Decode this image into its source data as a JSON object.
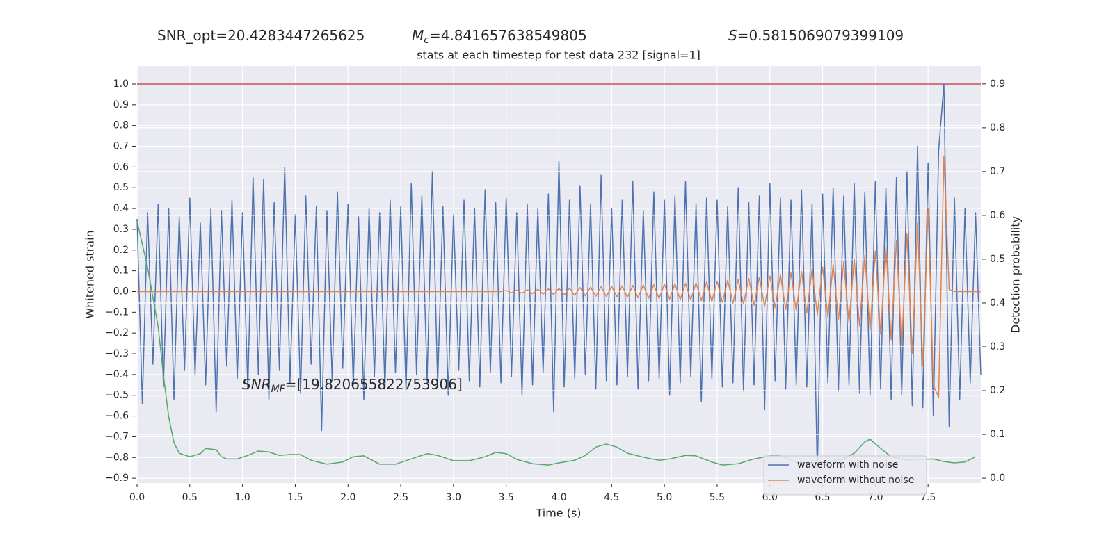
{
  "chart_data": {
    "type": "line",
    "title": "stats at each timestep for test data 232 [signal=1]",
    "annotations": [
      {
        "parts": [
          {
            "text": "SNR_opt=20.4283447265625"
          }
        ]
      },
      {
        "parts": [
          {
            "text": "M",
            "style": "italic"
          },
          {
            "text": "c",
            "style": "italic-sub"
          },
          {
            "text": "=4.841657638549805"
          }
        ]
      },
      {
        "parts": [
          {
            "text": "S",
            "style": "italic"
          },
          {
            "text": "=0.5815069079399109"
          }
        ]
      },
      {
        "parts": [
          {
            "text": "SNR",
            "style": "italic"
          },
          {
            "text": "MF",
            "style": "italic-sub"
          },
          {
            "text": "=[19.820655822753906]"
          }
        ]
      }
    ],
    "x_label": "Time (s)",
    "y_label": "Whitened strain",
    "y2_label": "Detection probability",
    "xlim": [
      0,
      8
    ],
    "ylim": [
      -0.923,
      1.087
    ],
    "y2lim": [
      -0.011,
      0.941
    ],
    "xticks": [
      {
        "value": 0,
        "label": "0.0"
      },
      {
        "value": 0.5,
        "label": "0.5"
      },
      {
        "value": 1,
        "label": "1.0"
      },
      {
        "value": 1.5,
        "label": "1.5"
      },
      {
        "value": 2,
        "label": "2.0"
      },
      {
        "value": 2.5,
        "label": "2.5"
      },
      {
        "value": 3,
        "label": "3.0"
      },
      {
        "value": 3.5,
        "label": "3.5"
      },
      {
        "value": 4,
        "label": "4.0"
      },
      {
        "value": 4.5,
        "label": "4.5"
      },
      {
        "value": 5,
        "label": "5.0"
      },
      {
        "value": 5.5,
        "label": "5.5"
      },
      {
        "value": 6,
        "label": "6.0"
      },
      {
        "value": 6.5,
        "label": "6.5"
      },
      {
        "value": 7,
        "label": "7.0"
      },
      {
        "value": 7.5,
        "label": "7.5"
      }
    ],
    "yticks": [
      {
        "value": -0.9,
        "label": "−0.9"
      },
      {
        "value": -0.8,
        "label": "−0.8"
      },
      {
        "value": -0.7,
        "label": "−0.7"
      },
      {
        "value": -0.6,
        "label": "−0.6"
      },
      {
        "value": -0.5,
        "label": "−0.5"
      },
      {
        "value": -0.4,
        "label": "−0.4"
      },
      {
        "value": -0.3,
        "label": "−0.3"
      },
      {
        "value": -0.2,
        "label": "−0.2"
      },
      {
        "value": -0.1,
        "label": "−0.1"
      },
      {
        "value": 0,
        "label": "0.0"
      },
      {
        "value": 0.1,
        "label": "0.1"
      },
      {
        "value": 0.2,
        "label": "0.2"
      },
      {
        "value": 0.3,
        "label": "0.3"
      },
      {
        "value": 0.4,
        "label": "0.4"
      },
      {
        "value": 0.5,
        "label": "0.5"
      },
      {
        "value": 0.6,
        "label": "0.6"
      },
      {
        "value": 0.7,
        "label": "0.7"
      },
      {
        "value": 0.8,
        "label": "0.8"
      },
      {
        "value": 0.9,
        "label": "0.9"
      },
      {
        "value": 1,
        "label": "1.0"
      }
    ],
    "y2ticks": [
      {
        "value": 0,
        "label": "0.0"
      },
      {
        "value": 0.1,
        "label": "0.1"
      },
      {
        "value": 0.2,
        "label": "0.2"
      },
      {
        "value": 0.3,
        "label": "0.3"
      },
      {
        "value": 0.4,
        "label": "0.4"
      },
      {
        "value": 0.5,
        "label": "0.5"
      },
      {
        "value": 0.6,
        "label": "0.6"
      },
      {
        "value": 0.7,
        "label": "0.7"
      },
      {
        "value": 0.8,
        "label": "0.8"
      },
      {
        "value": 0.9,
        "label": "0.9"
      }
    ],
    "grid": true,
    "legend": "lower right",
    "hline": {
      "value": 1.0,
      "color": "#c44e52"
    },
    "x": [
      0,
      0.05,
      0.1,
      0.15,
      0.2,
      0.25,
      0.3,
      0.35,
      0.4,
      0.45,
      0.5,
      0.55,
      0.6,
      0.65,
      0.7,
      0.75,
      0.8,
      0.85,
      0.9,
      0.95,
      1,
      1.05,
      1.1,
      1.15,
      1.2,
      1.25,
      1.3,
      1.35,
      1.4,
      1.45,
      1.5,
      1.55,
      1.6,
      1.65,
      1.7,
      1.75,
      1.8,
      1.85,
      1.9,
      1.95,
      2,
      2.05,
      2.1,
      2.15,
      2.2,
      2.25,
      2.3,
      2.35,
      2.4,
      2.45,
      2.5,
      2.55,
      2.6,
      2.65,
      2.7,
      2.75,
      2.8,
      2.85,
      2.9,
      2.95,
      3,
      3.05,
      3.1,
      3.15,
      3.2,
      3.25,
      3.3,
      3.35,
      3.4,
      3.45,
      3.5,
      3.55,
      3.6,
      3.65,
      3.7,
      3.75,
      3.8,
      3.85,
      3.9,
      3.95,
      4,
      4.05,
      4.1,
      4.15,
      4.2,
      4.25,
      4.3,
      4.35,
      4.4,
      4.45,
      4.5,
      4.55,
      4.6,
      4.65,
      4.7,
      4.75,
      4.8,
      4.85,
      4.9,
      4.95,
      5,
      5.05,
      5.1,
      5.15,
      5.2,
      5.25,
      5.3,
      5.35,
      5.4,
      5.45,
      5.5,
      5.55,
      5.6,
      5.65,
      5.7,
      5.75,
      5.8,
      5.85,
      5.9,
      5.95,
      6,
      6.05,
      6.1,
      6.15,
      6.2,
      6.25,
      6.3,
      6.35,
      6.4,
      6.45,
      6.5,
      6.55,
      6.6,
      6.65,
      6.7,
      6.75,
      6.8,
      6.85,
      6.9,
      6.95,
      7,
      7.05,
      7.1,
      7.15,
      7.2,
      7.25,
      7.3,
      7.35,
      7.4,
      7.45,
      7.5,
      7.55,
      7.6,
      7.65,
      7.7,
      7.75,
      7.8,
      7.85,
      7.9,
      7.95,
      8
    ],
    "series": [
      {
        "name": "waveform with noise",
        "color": "#4c72b0",
        "values": [
          0.35,
          -0.54,
          0.38,
          -0.35,
          0.42,
          -0.46,
          0.4,
          -0.52,
          0.36,
          -0.38,
          0.45,
          -0.4,
          0.33,
          -0.45,
          0.4,
          -0.58,
          0.39,
          -0.36,
          0.44,
          -0.42,
          0.38,
          -0.47,
          0.55,
          -0.4,
          0.54,
          -0.52,
          0.43,
          -0.38,
          0.6,
          -0.44,
          0.37,
          -0.49,
          0.46,
          -0.35,
          0.41,
          -0.67,
          0.39,
          -0.43,
          0.48,
          -0.37,
          0.42,
          -0.45,
          0.36,
          -0.52,
          0.4,
          -0.41,
          0.38,
          -0.47,
          0.44,
          -0.39,
          0.41,
          -0.48,
          0.52,
          -0.4,
          0.46,
          -0.43,
          0.58,
          -0.45,
          0.41,
          -0.5,
          0.37,
          -0.38,
          0.44,
          -0.43,
          0.4,
          -0.46,
          0.49,
          -0.39,
          0.43,
          -0.44,
          0.45,
          -0.41,
          0.38,
          -0.5,
          0.42,
          -0.45,
          0.4,
          -0.39,
          0.47,
          -0.58,
          0.63,
          -0.46,
          0.44,
          -0.42,
          0.51,
          -0.4,
          0.42,
          -0.47,
          0.56,
          -0.43,
          0.4,
          -0.45,
          0.44,
          -0.41,
          0.53,
          -0.47,
          0.39,
          -0.43,
          0.48,
          -0.42,
          0.44,
          -0.5,
          0.46,
          -0.44,
          0.53,
          -0.41,
          0.42,
          -0.53,
          0.45,
          -0.42,
          0.44,
          -0.46,
          0.41,
          -0.44,
          0.5,
          -0.48,
          0.43,
          -0.45,
          0.46,
          -0.57,
          0.52,
          -0.43,
          0.45,
          -0.47,
          0.44,
          -0.45,
          0.49,
          -0.46,
          0.42,
          -0.88,
          0.47,
          -0.44,
          0.5,
          -0.48,
          0.46,
          -0.45,
          0.52,
          -0.49,
          0.48,
          -0.5,
          0.53,
          -0.47,
          0.5,
          -0.52,
          0.55,
          -0.5,
          0.58,
          -0.55,
          0.7,
          -0.56,
          0.62,
          -0.6,
          0.68,
          1.0,
          -0.65,
          0.45,
          -0.52,
          0.4,
          -0.44,
          0.38,
          -0.4
        ]
      },
      {
        "name": "waveform without noise",
        "color": "#dd8452",
        "values": [
          0,
          0,
          0,
          0,
          0,
          0,
          0,
          0,
          0,
          0,
          0,
          0,
          0,
          0,
          0,
          0,
          0,
          0,
          0,
          0,
          0,
          0,
          0,
          0,
          0,
          0,
          0,
          0,
          0,
          0,
          0,
          0,
          0,
          0,
          0,
          0,
          0,
          0,
          0,
          0,
          0,
          0,
          0,
          0,
          0,
          0,
          0,
          0,
          0,
          0,
          0,
          0,
          0,
          0,
          0,
          0,
          0,
          0,
          0,
          0,
          0,
          0,
          0,
          0,
          0,
          0,
          0,
          0,
          0,
          0,
          0.005,
          -0.006,
          0.007,
          -0.008,
          0.009,
          -0.01,
          0.011,
          -0.012,
          0.013,
          -0.014,
          0.015,
          -0.016,
          0.017,
          -0.018,
          0.019,
          -0.02,
          0.021,
          -0.022,
          0.023,
          -0.024,
          0.025,
          -0.026,
          0.027,
          -0.028,
          0.029,
          -0.03,
          0.031,
          -0.032,
          0.033,
          -0.034,
          0.035,
          -0.036,
          0.037,
          -0.038,
          0.039,
          -0.04,
          0.042,
          -0.044,
          0.046,
          -0.048,
          0.05,
          -0.052,
          0.054,
          -0.056,
          0.058,
          -0.06,
          0.063,
          -0.066,
          0.069,
          -0.072,
          0.075,
          -0.078,
          0.082,
          -0.086,
          0.09,
          -0.094,
          0.098,
          -0.103,
          0.108,
          -0.113,
          0.118,
          -0.124,
          0.13,
          -0.136,
          0.143,
          -0.15,
          0.158,
          -0.166,
          0.175,
          -0.185,
          0.195,
          -0.206,
          0.218,
          -0.231,
          0.245,
          -0.26,
          0.28,
          -0.3,
          0.33,
          -0.36,
          0.4,
          -0.45,
          -0.51,
          0.65,
          0.01,
          0,
          0,
          0,
          0,
          0,
          0
        ]
      },
      {
        "color": "#55a868",
        "axis": "y2",
        "x": [
          0,
          0.1,
          0.2,
          0.25,
          0.3,
          0.35,
          0.4,
          0.5,
          0.6,
          0.65,
          0.75,
          0.8,
          0.85,
          0.95,
          1.05,
          1.15,
          1.25,
          1.35,
          1.45,
          1.55,
          1.65,
          1.8,
          1.95,
          2.05,
          2.15,
          2.3,
          2.45,
          2.6,
          2.75,
          2.85,
          3.0,
          3.15,
          3.3,
          3.4,
          3.5,
          3.6,
          3.75,
          3.9,
          4.0,
          4.15,
          4.25,
          4.35,
          4.45,
          4.55,
          4.65,
          4.8,
          4.95,
          5.05,
          5.2,
          5.3,
          5.45,
          5.55,
          5.7,
          5.85,
          6.0,
          6.1,
          6.25,
          6.4,
          6.55,
          6.7,
          6.8,
          6.9,
          6.95,
          7.05,
          7.15,
          7.3,
          7.45,
          7.55,
          7.65,
          7.75,
          7.85,
          7.95
        ],
        "values": [
          0.587,
          0.481,
          0.346,
          0.235,
          0.14,
          0.081,
          0.057,
          0.049,
          0.056,
          0.068,
          0.065,
          0.049,
          0.044,
          0.044,
          0.052,
          0.062,
          0.06,
          0.052,
          0.054,
          0.054,
          0.041,
          0.032,
          0.037,
          0.049,
          0.051,
          0.032,
          0.032,
          0.044,
          0.056,
          0.052,
          0.04,
          0.04,
          0.049,
          0.059,
          0.056,
          0.043,
          0.033,
          0.03,
          0.035,
          0.041,
          0.052,
          0.071,
          0.078,
          0.071,
          0.057,
          0.048,
          0.041,
          0.044,
          0.052,
          0.051,
          0.037,
          0.03,
          0.033,
          0.044,
          0.051,
          0.051,
          0.037,
          0.032,
          0.038,
          0.044,
          0.057,
          0.083,
          0.089,
          0.068,
          0.049,
          0.041,
          0.043,
          0.044,
          0.038,
          0.035,
          0.037,
          0.049
        ]
      }
    ]
  }
}
